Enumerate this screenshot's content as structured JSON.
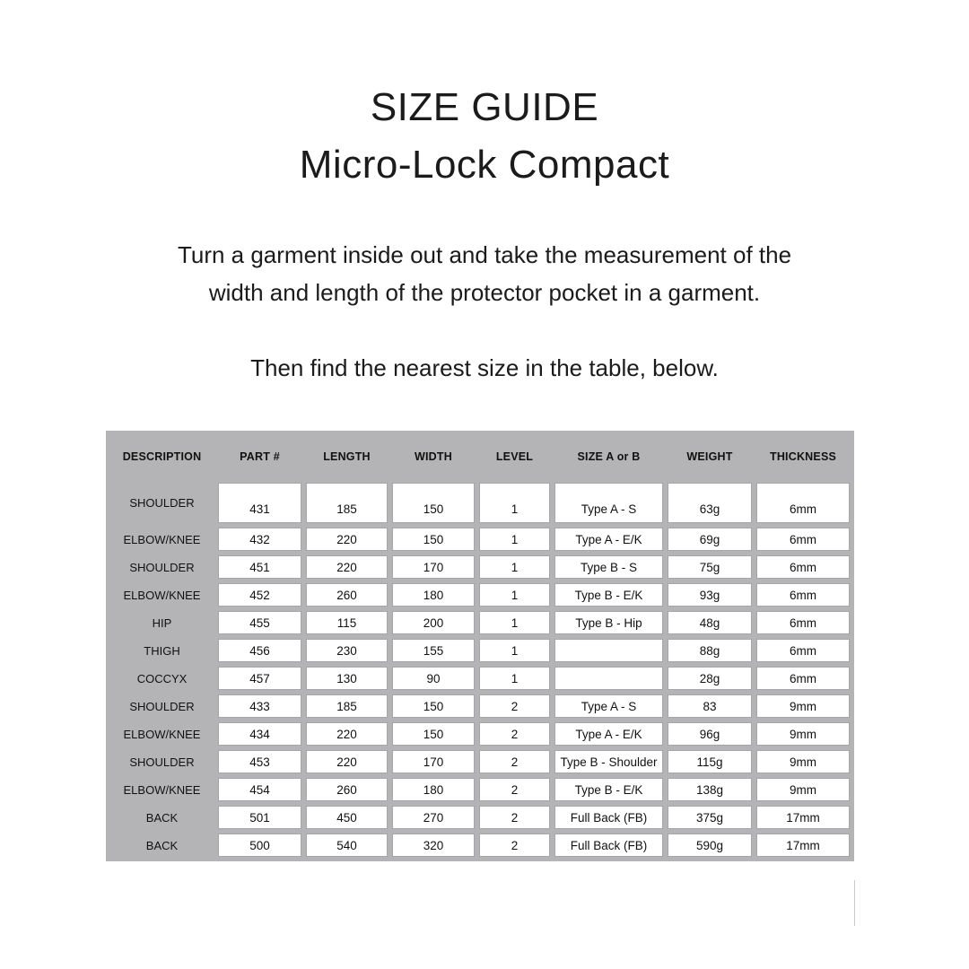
{
  "title": {
    "line1": "SIZE GUIDE",
    "line2": "Micro-Lock Compact"
  },
  "instructions": {
    "para1_line1": "Turn a garment inside out and take the measurement of the",
    "para1_line2": "width and length of the protector pocket in a garment.",
    "para2": "Then find the nearest size in the table, below."
  },
  "table": {
    "columns": [
      "DESCRIPTION",
      "PART #",
      "LENGTH",
      "WIDTH",
      "LEVEL",
      "SIZE A or B",
      "WEIGHT",
      "THICKNESS"
    ],
    "rows": [
      [
        "SHOULDER",
        "431",
        "185",
        "150",
        "1",
        "Type A - S",
        "63g",
        "6mm"
      ],
      [
        "ELBOW/KNEE",
        "432",
        "220",
        "150",
        "1",
        "Type A - E/K",
        "69g",
        "6mm"
      ],
      [
        "SHOULDER",
        "451",
        "220",
        "170",
        "1",
        "Type B - S",
        "75g",
        "6mm"
      ],
      [
        "ELBOW/KNEE",
        "452",
        "260",
        "180",
        "1",
        "Type B - E/K",
        "93g",
        "6mm"
      ],
      [
        "HIP",
        "455",
        "115",
        "200",
        "1",
        "Type B - Hip",
        "48g",
        "6mm"
      ],
      [
        "THIGH",
        "456",
        "230",
        "155",
        "1",
        "",
        "88g",
        "6mm"
      ],
      [
        "COCCYX",
        "457",
        "130",
        "90",
        "1",
        "",
        "28g",
        "6mm"
      ],
      [
        "SHOULDER",
        "433",
        "185",
        "150",
        "2",
        "Type A - S",
        "83",
        "9mm"
      ],
      [
        "ELBOW/KNEE",
        "434",
        "220",
        "150",
        "2",
        "Type A - E/K",
        "96g",
        "9mm"
      ],
      [
        "SHOULDER",
        "453",
        "220",
        "170",
        "2",
        "Type B - Shoulder",
        "115g",
        "9mm"
      ],
      [
        "ELBOW/KNEE",
        "454",
        "260",
        "180",
        "2",
        "Type B - E/K",
        "138g",
        "9mm"
      ],
      [
        "BACK",
        "501",
        "450",
        "270",
        "2",
        "Full Back (FB)",
        "375g",
        "17mm"
      ],
      [
        "BACK",
        "500",
        "540",
        "320",
        "2",
        "Full Back (FB)",
        "590g",
        "17mm"
      ]
    ]
  },
  "colors": {
    "table_background": "#b4b4b6",
    "cell_background": "#ffffff",
    "cell_border": "#a4a6a8",
    "text": "#1a1a1a"
  }
}
